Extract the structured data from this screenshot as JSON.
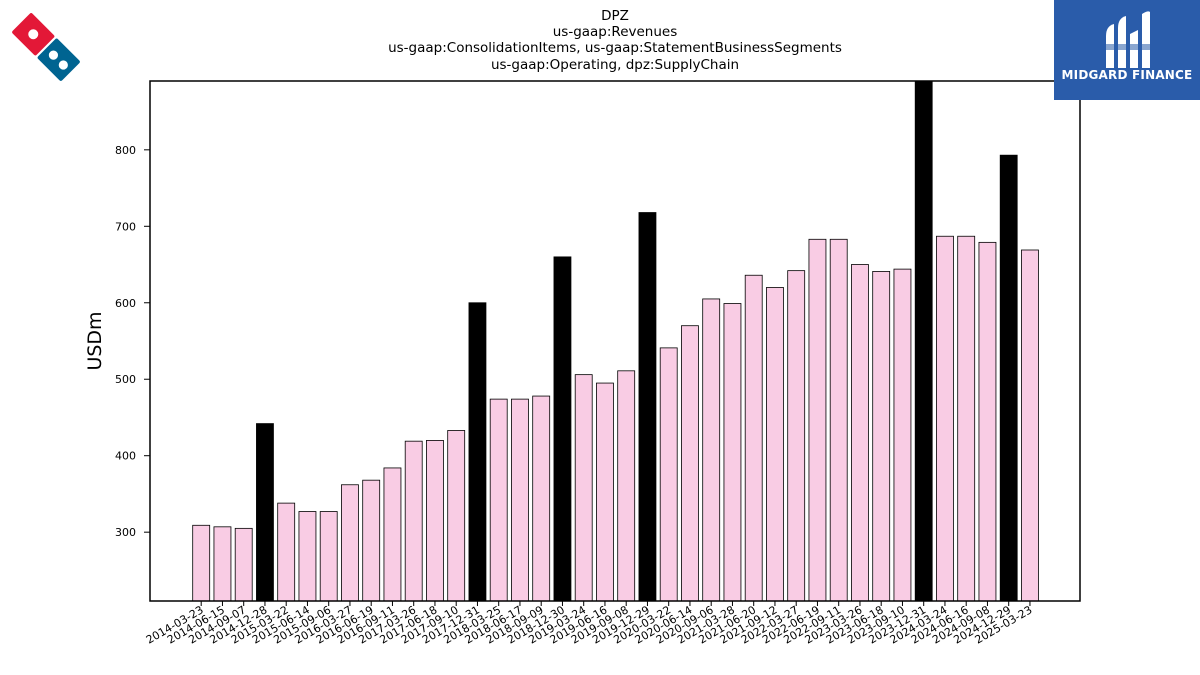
{
  "colors": {
    "normal": "#f9cce4",
    "highlight": "#000000",
    "brand_bg": "#2a5caa",
    "logo_red": "#e31837",
    "logo_blue": "#006491"
  },
  "logo": {
    "name": "domino-logo-icon"
  },
  "brand": {
    "text": "MIDGARD FINANCE",
    "icon": "midgard-logo-icon"
  },
  "chart_data": {
    "type": "bar",
    "title": [
      "DPZ",
      "us-gaap:Revenues",
      "us-gaap:ConsolidationItems, us-gaap:StatementBusinessSegments",
      "us-gaap:Operating, dpz:SupplyChain"
    ],
    "xlabel": "",
    "ylabel": "USDm",
    "ylim": [
      210,
      890
    ],
    "yticks": [
      300,
      400,
      500,
      600,
      700,
      800
    ],
    "categories": [
      "2014-03-23",
      "2014-06-15",
      "2014-09-07",
      "2014-12-28",
      "2015-03-22",
      "2015-06-14",
      "2015-09-06",
      "2016-03-27",
      "2016-06-19",
      "2016-09-11",
      "2017-03-26",
      "2017-06-18",
      "2017-09-10",
      "2017-12-31",
      "2018-03-25",
      "2018-06-17",
      "2018-09-09",
      "2018-12-30",
      "2019-03-24",
      "2019-06-16",
      "2019-09-08",
      "2019-12-29",
      "2020-03-22",
      "2020-06-14",
      "2020-09-06",
      "2021-03-28",
      "2021-06-20",
      "2021-09-12",
      "2022-03-27",
      "2022-06-19",
      "2022-09-11",
      "2023-03-26",
      "2023-06-18",
      "2023-09-10",
      "2023-12-31",
      "2024-03-24",
      "2024-06-16",
      "2024-09-08",
      "2024-12-29",
      "2025-03-23"
    ],
    "values": [
      309,
      307,
      305,
      442,
      338,
      327,
      327,
      362,
      368,
      384,
      419,
      420,
      433,
      600,
      474,
      474,
      478,
      660,
      506,
      495,
      511,
      718,
      541,
      570,
      605,
      599,
      636,
      620,
      642,
      683,
      683,
      650,
      641,
      644,
      890,
      687,
      687,
      679,
      793,
      669
    ],
    "highlighted": [
      3,
      13,
      17,
      21,
      34,
      38
    ],
    "grid": false,
    "legend": "none"
  }
}
